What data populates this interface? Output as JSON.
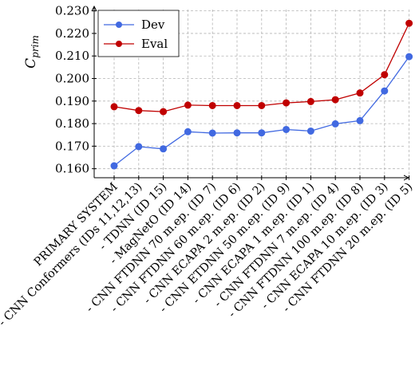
{
  "chart_data": {
    "type": "line",
    "title": "",
    "xlabel": "",
    "ylabel": {
      "main": "C",
      "sub": "prim"
    },
    "ylim": [
      0.156,
      0.232
    ],
    "yticks": [
      0.16,
      0.17,
      0.18,
      0.19,
      0.2,
      0.21,
      0.22,
      0.23
    ],
    "ytick_labels": [
      "0.160",
      "0.170",
      "0.180",
      "0.190",
      "0.200",
      "0.210",
      "0.220",
      "0.230"
    ],
    "grid": true,
    "legend_position": "top-left",
    "categories": [
      "PRIMARY SYSTEM",
      "- CNN Conformers (IDs 11,12,13)",
      "- TDNN (ID 15)",
      "- MagNetO (ID 14)",
      "- CNN FTDNN 70 m.ep. (ID 7)",
      "- CNN FTDNN 60 m.ep. (ID 6)",
      "- CNN ECAPA 2 m.ep. (ID 2)",
      "- CNN ETDNN 50 m.ep. (ID 9)",
      "- CNN ECAPA 1 m.ep. (ID 1)",
      "- CNN FTDNN 7 m.ep. (ID 4)",
      "- CNN FTDNN 100 m.ep. (ID 8)",
      "- CNN ECAPA 10 m.ep. (ID 3)",
      "- CNN FTDNN 20 m.ep. (ID 5)"
    ],
    "series": [
      {
        "name": "Dev",
        "color": "#4169e1",
        "values": [
          0.1613,
          0.1698,
          0.1688,
          0.1764,
          0.1758,
          0.1759,
          0.1759,
          0.1774,
          0.1767,
          0.1799,
          0.1813,
          0.1945,
          0.2097
        ]
      },
      {
        "name": "Eval",
        "color": "#c00000",
        "values": [
          0.1875,
          0.1858,
          0.1853,
          0.1882,
          0.188,
          0.188,
          0.188,
          0.1892,
          0.1898,
          0.1906,
          0.1936,
          0.2017,
          0.2245
        ]
      }
    ]
  }
}
